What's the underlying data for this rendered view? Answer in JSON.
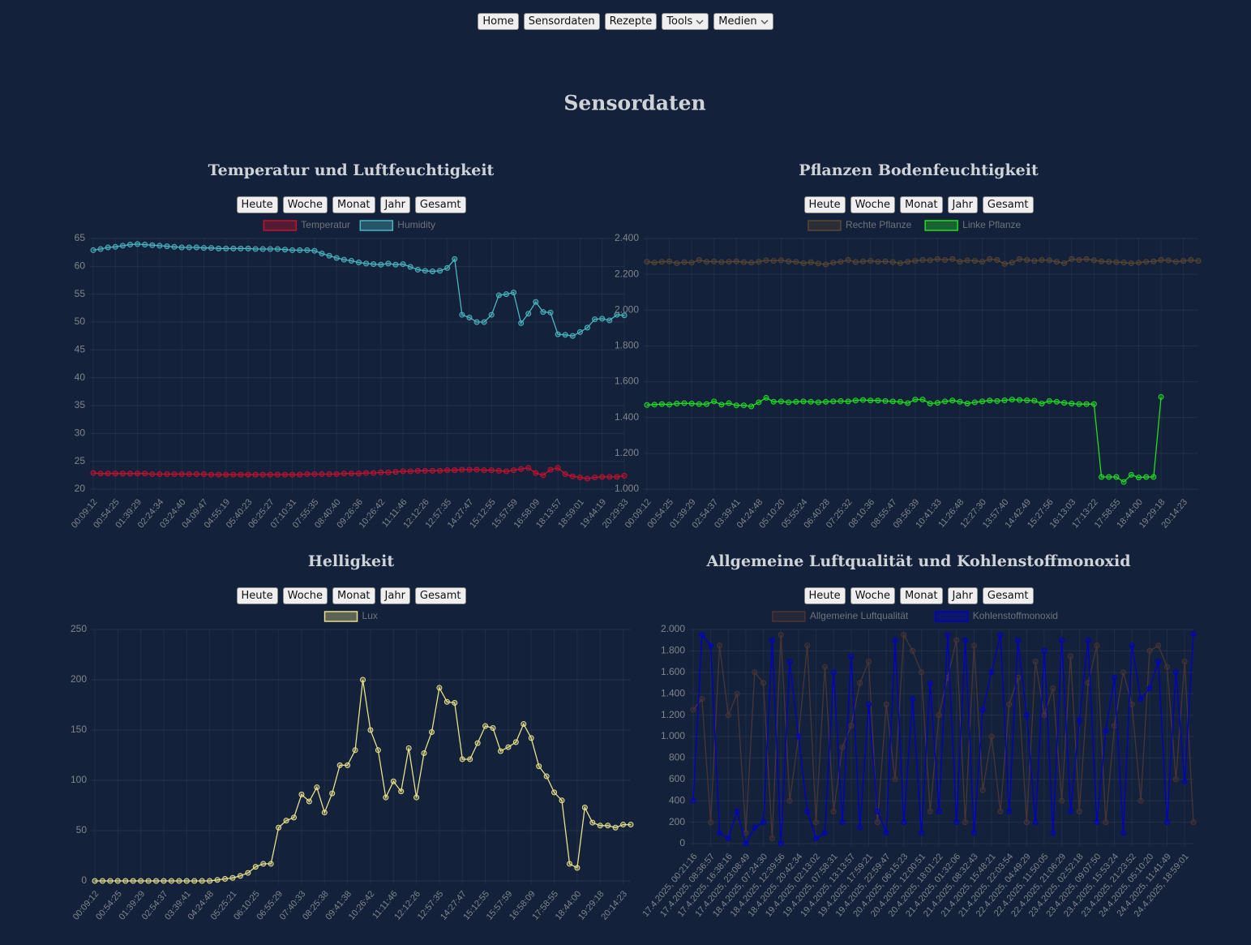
{
  "nav": [
    "Home",
    "Sensordaten",
    "Rezepte",
    "Tools",
    "Medien"
  ],
  "page_title": "Sensordaten",
  "range_buttons": [
    "Heute",
    "Woche",
    "Monat",
    "Jahr",
    "Gesamt"
  ],
  "chart_data": [
    {
      "type": "line",
      "title": "Temperatur und Luftfeuchtigkeit",
      "grid": true,
      "categories": [
        "00:09:12",
        null,
        null,
        "00:54:25",
        null,
        null,
        "01:39:29",
        null,
        null,
        "02:24:34",
        null,
        null,
        "03:24:40",
        null,
        null,
        "04:09:47",
        null,
        null,
        "04:55:19",
        null,
        null,
        "05:40:23",
        null,
        null,
        "06:25:27",
        null,
        null,
        "07:10:31",
        null,
        null,
        "07:55:35",
        null,
        null,
        "08:40:40",
        null,
        null,
        "09:26:36",
        null,
        null,
        "10:26:42",
        null,
        null,
        "11:11:46",
        null,
        null,
        "12:12:26",
        null,
        null,
        "12:57:35",
        null,
        null,
        "14:27:47",
        null,
        null,
        "15:12:55",
        null,
        null,
        "15:57:59",
        null,
        null,
        "16:58:09",
        null,
        null,
        "18:13:57",
        null,
        null,
        "18:59:01",
        null,
        null,
        "19:44:19",
        null,
        null,
        "20:29:33"
      ],
      "series": [
        {
          "name": "Temperatur",
          "color": "#c8102e",
          "values": [
            22.9,
            22.8,
            22.8,
            22.8,
            22.8,
            22.8,
            22.8,
            22.8,
            22.7,
            22.7,
            22.7,
            22.7,
            22.7,
            22.7,
            22.7,
            22.7,
            22.6,
            22.6,
            22.6,
            22.6,
            22.6,
            22.6,
            22.6,
            22.6,
            22.6,
            22.6,
            22.6,
            22.6,
            22.6,
            22.7,
            22.7,
            22.7,
            22.7,
            22.7,
            22.8,
            22.8,
            22.8,
            22.9,
            22.9,
            23,
            23,
            23.1,
            23.2,
            23.2,
            23.3,
            23.3,
            23.3,
            23.3,
            23.4,
            23.4,
            23.5,
            23.5,
            23.5,
            23.4,
            23.4,
            23.3,
            23.2,
            23.4,
            23.6,
            23.8,
            22.9,
            22.5,
            23.5,
            23.8,
            22.7,
            22.3,
            22.1,
            21.9,
            22.1,
            22.2,
            22.2,
            22.2,
            22.4
          ]
        },
        {
          "name": "Humidity",
          "color": "#4bb5c1",
          "values": [
            62.9,
            63.1,
            63.4,
            63.5,
            63.7,
            63.9,
            64,
            63.9,
            63.8,
            63.7,
            63.6,
            63.5,
            63.4,
            63.4,
            63.4,
            63.3,
            63.3,
            63.2,
            63.2,
            63.2,
            63.2,
            63.2,
            63.1,
            63.1,
            63.1,
            63.1,
            63,
            62.9,
            62.9,
            62.9,
            62.8,
            62.3,
            61.9,
            61.5,
            61.2,
            61,
            60.7,
            60.5,
            60.4,
            60.3,
            60.5,
            60.3,
            60.4,
            59.9,
            59.4,
            59.2,
            59.1,
            59.2,
            59.7,
            61.3,
            51.3,
            50.8,
            50,
            50,
            51.3,
            54.8,
            55,
            55.3,
            49.8,
            51.5,
            53.6,
            51.8,
            51.7,
            47.8,
            47.7,
            47.5,
            48.2,
            49,
            50.5,
            50.6,
            50.3,
            51.3,
            51.2
          ]
        }
      ],
      "ylim": [
        20,
        65
      ],
      "yticks": [
        20,
        25,
        30,
        35,
        40,
        45,
        50,
        55,
        60,
        65
      ]
    },
    {
      "type": "line",
      "title": "Pflanzen Bodenfeuchtigkeit",
      "grid": true,
      "categories": [
        "00:09:12",
        null,
        null,
        "00:54:25",
        null,
        null,
        "01:39:29",
        null,
        null,
        "02:54:37",
        null,
        null,
        "03:39:41",
        null,
        null,
        "04:24:48",
        null,
        null,
        "05:10:20",
        null,
        null,
        "05:55:24",
        null,
        null,
        "06:40:28",
        null,
        null,
        "07:25:32",
        null,
        null,
        "08:10:36",
        null,
        null,
        "08:55:47",
        null,
        null,
        "09:56:39",
        null,
        null,
        "10:41:33",
        null,
        null,
        "11:26:48",
        null,
        null,
        "12:27:30",
        null,
        null,
        "13:57:40",
        null,
        null,
        "14:42:49",
        null,
        null,
        "15:27:56",
        null,
        null,
        "16:13:03",
        null,
        null,
        "17:13:22",
        null,
        null,
        "17:58:55",
        null,
        null,
        "18:44:00",
        null,
        null,
        "19:29:18",
        null,
        null,
        "20:14:23",
        null,
        null
      ],
      "series": [
        {
          "name": "Rechte Pflanze",
          "color": "#5a4632",
          "values": [
            2270,
            2265,
            2270,
            2272,
            2262,
            2268,
            2265,
            2280,
            2270,
            2272,
            2268,
            2270,
            2272,
            2268,
            2265,
            2270,
            2278,
            2275,
            2278,
            2272,
            2270,
            2262,
            2268,
            2260,
            2255,
            2265,
            2270,
            2280,
            2268,
            2272,
            2275,
            2270,
            2272,
            2268,
            2262,
            2270,
            2275,
            2280,
            2278,
            2285,
            2280,
            2285,
            2270,
            2278,
            2275,
            2270,
            2285,
            2280,
            2258,
            2265,
            2285,
            2280,
            2275,
            2280,
            2278,
            2270,
            2262,
            2285,
            2280,
            2285,
            2278,
            2272,
            2270,
            2268,
            2266,
            2262,
            2265,
            2270,
            2272,
            2280,
            2278,
            2270,
            2275,
            2280,
            2275
          ]
        },
        {
          "name": "Linke Pflanze",
          "color": "#22dd22",
          "values": [
            1470,
            1472,
            1475,
            1472,
            1478,
            1480,
            1478,
            1475,
            1475,
            1490,
            1472,
            1480,
            1468,
            1468,
            1462,
            1485,
            1510,
            1488,
            1490,
            1485,
            1488,
            1490,
            1488,
            1485,
            1488,
            1490,
            1492,
            1490,
            1495,
            1498,
            1495,
            1495,
            1492,
            1490,
            1488,
            1480,
            1500,
            1500,
            1478,
            1482,
            1490,
            1495,
            1488,
            1478,
            1485,
            1490,
            1495,
            1492,
            1496,
            1500,
            1498,
            1496,
            1494,
            1478,
            1492,
            1488,
            1482,
            1478,
            1475,
            1475,
            1475,
            1068,
            1068,
            1068,
            1040,
            1080,
            1065,
            1068,
            1068,
            1515,
            null,
            null,
            null,
            null,
            null
          ]
        }
      ],
      "ylim": [
        1000,
        2400
      ],
      "yticks": [
        {
          "value": 1000,
          "label": "1.000"
        },
        {
          "value": 1200,
          "label": "1.200"
        },
        {
          "value": 1400,
          "label": "1.400"
        },
        {
          "value": 1600,
          "label": "1.600"
        },
        {
          "value": 1800,
          "label": "1.800"
        },
        {
          "value": 2000,
          "label": "2.000"
        },
        {
          "value": 2200,
          "label": "2.200"
        },
        {
          "value": 2400,
          "label": "2.400"
        }
      ]
    },
    {
      "type": "line",
      "title": "Helligkeit",
      "grid": true,
      "categories": [
        "00:09:12",
        null,
        null,
        "00:54:25",
        null,
        null,
        "01:39:29",
        null,
        null,
        "02:54:37",
        null,
        null,
        "03:39:41",
        null,
        null,
        "04:24:48",
        null,
        null,
        "05:25:21",
        null,
        null,
        "06:10:25",
        null,
        null,
        "06:55:29",
        null,
        null,
        "07:40:33",
        null,
        null,
        "08:25:38",
        null,
        null,
        "09:41:38",
        null,
        null,
        "10:26:42",
        null,
        null,
        "11:11:46",
        null,
        null,
        "12:12:26",
        null,
        null,
        "12:57:35",
        null,
        null,
        "14:27:47",
        null,
        null,
        "15:12:55",
        null,
        null,
        "15:57:59",
        null,
        null,
        "16:58:09",
        null,
        null,
        "17:58:55",
        null,
        null,
        "18:44:00",
        null,
        null,
        "19:29:18",
        null,
        null,
        "20:14:23",
        null
      ],
      "series": [
        {
          "name": "Lux",
          "color": "#e8e08a",
          "values": [
            0,
            0,
            0,
            0,
            0,
            0,
            0,
            0,
            0,
            0,
            0,
            0,
            0,
            0,
            0,
            0,
            1,
            2,
            3,
            5,
            8,
            14,
            17,
            17,
            53,
            60,
            63,
            86,
            79,
            93,
            68,
            87,
            115,
            115,
            130,
            200,
            150,
            130,
            83,
            99,
            89,
            132,
            83,
            127,
            148,
            192,
            178,
            177,
            121,
            121,
            137,
            154,
            152,
            129,
            133,
            138,
            156,
            142,
            114,
            104,
            88,
            80,
            17,
            13,
            73,
            58,
            55,
            55,
            53,
            56,
            56
          ]
        }
      ],
      "ylim": [
        0,
        250
      ],
      "yticks": [
        0,
        50,
        100,
        150,
        200,
        250
      ]
    },
    {
      "type": "line",
      "title": "Allgemeine Luftqualität und Kohlenstoffmonoxid",
      "grid": true,
      "categories": [
        "17.4.2025, 00:21:16",
        null,
        "17.4.2025, 08:36:57",
        null,
        "17.4.2025, 16:38:16",
        null,
        "17.4.2025, 23:08:49",
        null,
        "18.4.2025, 07:24:30",
        null,
        "18.4.2025, 12:39:56",
        null,
        "18.4.2025, 20:42:34",
        null,
        "19.4.2025, 02:13:02",
        null,
        "19.4.2025, 07:58:31",
        null,
        "19.4.2025, 13:13:57",
        null,
        "19.4.2025, 17:59:21",
        null,
        "19.4.2025, 22:59:47",
        null,
        "20.4.2025, 06:15:23",
        null,
        "20.4.2025, 12:00:51",
        null,
        "20.4.2025, 18:01:22",
        null,
        "21.4.2025, 01:32:06",
        null,
        "21.4.2025, 08:32:43",
        null,
        "21.4.2025, 15:48:21",
        null,
        "21.4.2025, 22:03:54",
        null,
        "22.4.2025, 04:49:29",
        null,
        "22.4.2025, 11:50:05",
        null,
        "22.4.2025, 21:06:29",
        null,
        "23.4.2025, 02:52:18",
        null,
        "23.4.2025, 09:07:50",
        null,
        "23.4.2025, 15:53:24",
        null,
        "23.4.2025, 21:23:52",
        null,
        "24.4.2025, 05:10:20",
        null,
        "24.4.2025, 11:41:49",
        null,
        "24.4.2025, 18:59:01",
        null
      ],
      "series": [
        {
          "name": "Allgemeine Luftqualität",
          "color": "#4a3535",
          "values": [
            1250,
            1350,
            200,
            1850,
            1200,
            1400,
            100,
            1600,
            1500,
            50,
            1950,
            400,
            1000,
            1850,
            200,
            1650,
            300,
            900,
            1100,
            1500,
            1700,
            200,
            1300,
            600,
            1950,
            1800,
            1600,
            300,
            1200,
            1550,
            1900,
            200,
            1850,
            500,
            1000,
            300,
            1300,
            1550,
            200,
            1700,
            1200,
            1450,
            400,
            1750,
            300,
            1500,
            1850,
            200,
            1100,
            1600,
            1300,
            400,
            1800,
            1850,
            1650,
            600,
            1700,
            200
          ]
        },
        {
          "name": "Kohlenstoffmonoxid",
          "color": "#0000c8",
          "values": [
            400,
            1950,
            1850,
            100,
            50,
            300,
            0,
            150,
            200,
            1900,
            0,
            1700,
            1000,
            300,
            50,
            100,
            1600,
            200,
            1750,
            150,
            1300,
            300,
            100,
            1900,
            200,
            1350,
            100,
            1500,
            300,
            1950,
            200,
            1900,
            100,
            1250,
            1600,
            1950,
            300,
            1900,
            1200,
            200,
            1800,
            100,
            1900,
            300,
            1150,
            1900,
            200,
            1050,
            1550,
            100,
            1850,
            1350,
            1450,
            1700,
            200,
            1600,
            580,
            1960
          ]
        }
      ],
      "ylim": [
        0,
        2000
      ],
      "yticks": [
        0,
        200,
        400,
        600,
        800,
        {
          "value": 1000,
          "label": "1.000"
        },
        {
          "value": 1200,
          "label": "1.200"
        },
        {
          "value": 1400,
          "label": "1.400"
        },
        {
          "value": 1600,
          "label": "1.600"
        },
        {
          "value": 1800,
          "label": "1.800"
        },
        {
          "value": 2000,
          "label": "2.000"
        }
      ]
    }
  ]
}
